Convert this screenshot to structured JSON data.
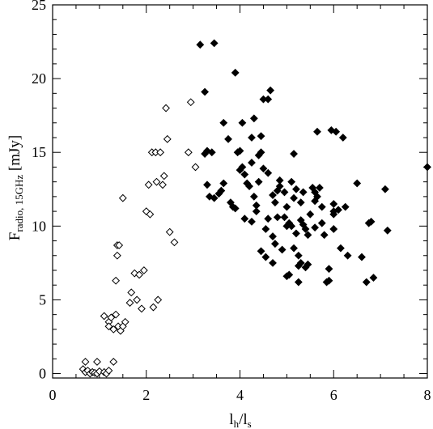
{
  "chart_data": {
    "type": "scatter",
    "title": "",
    "xlabel": {
      "main": "l",
      "sub1": "h",
      "sep": "/l",
      "sub2": "s"
    },
    "ylabel": {
      "main": "F",
      "sub": "radio, 15GHz",
      "unit": " [mJy]"
    },
    "xlim": [
      0,
      8
    ],
    "ylim": [
      -0.3,
      25
    ],
    "xticks": [
      0,
      2,
      4,
      6,
      8
    ],
    "yticks": [
      0,
      5,
      10,
      15,
      20,
      25
    ],
    "grid": false,
    "legend": "none",
    "series": [
      {
        "marker": "open-diamond",
        "color": "#000000",
        "points": [
          [
            0.7,
            0.8
          ],
          [
            0.65,
            0.3
          ],
          [
            0.7,
            0.1
          ],
          [
            0.75,
            0.2
          ],
          [
            0.8,
            0.0
          ],
          [
            0.85,
            0.1
          ],
          [
            0.9,
            0.05
          ],
          [
            0.95,
            0.0
          ],
          [
            1.0,
            0.15
          ],
          [
            0.95,
            0.8
          ],
          [
            1.1,
            0.1
          ],
          [
            1.15,
            0.0
          ],
          [
            1.2,
            0.2
          ],
          [
            1.3,
            0.8
          ],
          [
            1.1,
            3.9
          ],
          [
            1.2,
            3.5
          ],
          [
            1.2,
            3.2
          ],
          [
            1.25,
            3.8
          ],
          [
            1.3,
            3.0
          ],
          [
            1.35,
            4.0
          ],
          [
            1.4,
            3.2
          ],
          [
            1.45,
            2.9
          ],
          [
            1.5,
            3.2
          ],
          [
            1.55,
            3.5
          ],
          [
            1.35,
            6.3
          ],
          [
            1.38,
            8.0
          ],
          [
            1.38,
            8.7
          ],
          [
            1.42,
            8.7
          ],
          [
            1.5,
            11.9
          ],
          [
            1.65,
            4.8
          ],
          [
            1.68,
            5.5
          ],
          [
            1.75,
            6.8
          ],
          [
            1.8,
            5.0
          ],
          [
            1.85,
            6.7
          ],
          [
            1.9,
            4.4
          ],
          [
            1.95,
            7.0
          ],
          [
            2.0,
            11.0
          ],
          [
            2.08,
            10.8
          ],
          [
            2.05,
            12.8
          ],
          [
            2.12,
            15.0
          ],
          [
            2.15,
            4.5
          ],
          [
            2.2,
            15.0
          ],
          [
            2.22,
            13.0
          ],
          [
            2.25,
            5.0
          ],
          [
            2.3,
            15.0
          ],
          [
            2.35,
            12.8
          ],
          [
            2.38,
            13.4
          ],
          [
            2.42,
            18.0
          ],
          [
            2.45,
            15.9
          ],
          [
            2.5,
            9.6
          ],
          [
            2.6,
            8.9
          ],
          [
            2.9,
            15.0
          ],
          [
            2.95,
            18.4
          ],
          [
            3.05,
            14.0
          ]
        ]
      },
      {
        "marker": "filled-diamond",
        "color": "#000000",
        "points": [
          [
            3.15,
            22.3
          ],
          [
            3.45,
            22.4
          ],
          [
            3.25,
            19.1
          ],
          [
            3.25,
            14.9
          ],
          [
            3.3,
            15.1
          ],
          [
            3.4,
            15.0
          ],
          [
            3.3,
            12.8
          ],
          [
            3.35,
            12.0
          ],
          [
            3.45,
            11.9
          ],
          [
            3.55,
            12.2
          ],
          [
            3.6,
            12.4
          ],
          [
            3.65,
            12.9
          ],
          [
            3.65,
            17.0
          ],
          [
            3.75,
            15.9
          ],
          [
            3.8,
            11.6
          ],
          [
            3.85,
            11.3
          ],
          [
            3.9,
            11.2
          ],
          [
            3.9,
            20.4
          ],
          [
            3.95,
            15.0
          ],
          [
            4.0,
            15.1
          ],
          [
            4.0,
            13.8
          ],
          [
            4.05,
            14.0
          ],
          [
            4.05,
            17.0
          ],
          [
            4.1,
            10.5
          ],
          [
            4.1,
            13.5
          ],
          [
            4.15,
            12.9
          ],
          [
            4.2,
            12.7
          ],
          [
            4.25,
            14.3
          ],
          [
            4.25,
            16.0
          ],
          [
            4.3,
            17.3
          ],
          [
            4.3,
            12.0
          ],
          [
            4.35,
            11.4
          ],
          [
            4.35,
            11.0
          ],
          [
            4.4,
            13.0
          ],
          [
            4.4,
            14.8
          ],
          [
            4.45,
            16.1
          ],
          [
            4.45,
            15.0
          ],
          [
            4.5,
            13.9
          ],
          [
            4.5,
            18.6
          ],
          [
            4.6,
            18.6
          ],
          [
            4.65,
            19.2
          ],
          [
            4.55,
            9.8
          ],
          [
            4.45,
            8.3
          ],
          [
            4.55,
            7.9
          ],
          [
            4.6,
            10.5
          ],
          [
            4.7,
            9.3
          ],
          [
            4.7,
            7.5
          ],
          [
            4.75,
            11.6
          ],
          [
            4.8,
            12.4
          ],
          [
            4.85,
            12.7
          ],
          [
            4.85,
            13.1
          ],
          [
            4.9,
            8.4
          ],
          [
            4.95,
            10.6
          ],
          [
            4.95,
            12.3
          ],
          [
            5.0,
            6.6
          ],
          [
            5.05,
            10.2
          ],
          [
            5.1,
            10.0
          ],
          [
            5.1,
            13.0
          ],
          [
            5.15,
            11.9
          ],
          [
            5.2,
            12.5
          ],
          [
            5.15,
            14.9
          ],
          [
            5.2,
            9.5
          ],
          [
            5.25,
            7.3
          ],
          [
            5.3,
            7.5
          ],
          [
            5.3,
            10.4
          ],
          [
            5.35,
            10.1
          ],
          [
            5.4,
            9.8
          ],
          [
            5.45,
            9.4
          ],
          [
            5.5,
            10.8
          ],
          [
            5.55,
            12.6
          ],
          [
            5.6,
            12.3
          ],
          [
            5.6,
            9.9
          ],
          [
            5.65,
            16.4
          ],
          [
            5.7,
            12.6
          ],
          [
            5.75,
            10.2
          ],
          [
            5.8,
            9.4
          ],
          [
            5.85,
            6.2
          ],
          [
            5.9,
            6.3
          ],
          [
            5.95,
            16.5
          ],
          [
            6.0,
            11.5
          ],
          [
            6.05,
            16.4
          ],
          [
            6.1,
            11.1
          ],
          [
            6.15,
            8.5
          ],
          [
            6.2,
            16.0
          ],
          [
            6.25,
            11.3
          ],
          [
            6.5,
            12.9
          ],
          [
            6.6,
            7.9
          ],
          [
            6.7,
            6.2
          ],
          [
            6.75,
            10.2
          ],
          [
            6.85,
            6.5
          ],
          [
            6.8,
            10.3
          ],
          [
            7.1,
            12.5
          ],
          [
            7.15,
            9.7
          ],
          [
            8.0,
            14.0
          ],
          [
            5.05,
            6.7
          ],
          [
            5.25,
            6.2
          ],
          [
            5.15,
            8.5
          ],
          [
            5.4,
            7.2
          ],
          [
            5.45,
            7.4
          ],
          [
            5.6,
            11.7
          ],
          [
            5.65,
            12.0
          ],
          [
            5.75,
            11.3
          ],
          [
            6.0,
            9.8
          ],
          [
            6.0,
            11.0
          ],
          [
            5.0,
            11.3
          ],
          [
            5.0,
            10.0
          ],
          [
            4.8,
            10.6
          ],
          [
            4.25,
            10.3
          ],
          [
            4.6,
            13.6
          ],
          [
            4.7,
            12.1
          ],
          [
            5.3,
            11.6
          ],
          [
            5.35,
            12.3
          ],
          [
            5.9,
            7.1
          ],
          [
            6.0,
            10.8
          ],
          [
            6.3,
            8.0
          ],
          [
            4.75,
            8.8
          ],
          [
            5.25,
            8.0
          ]
        ]
      }
    ]
  }
}
